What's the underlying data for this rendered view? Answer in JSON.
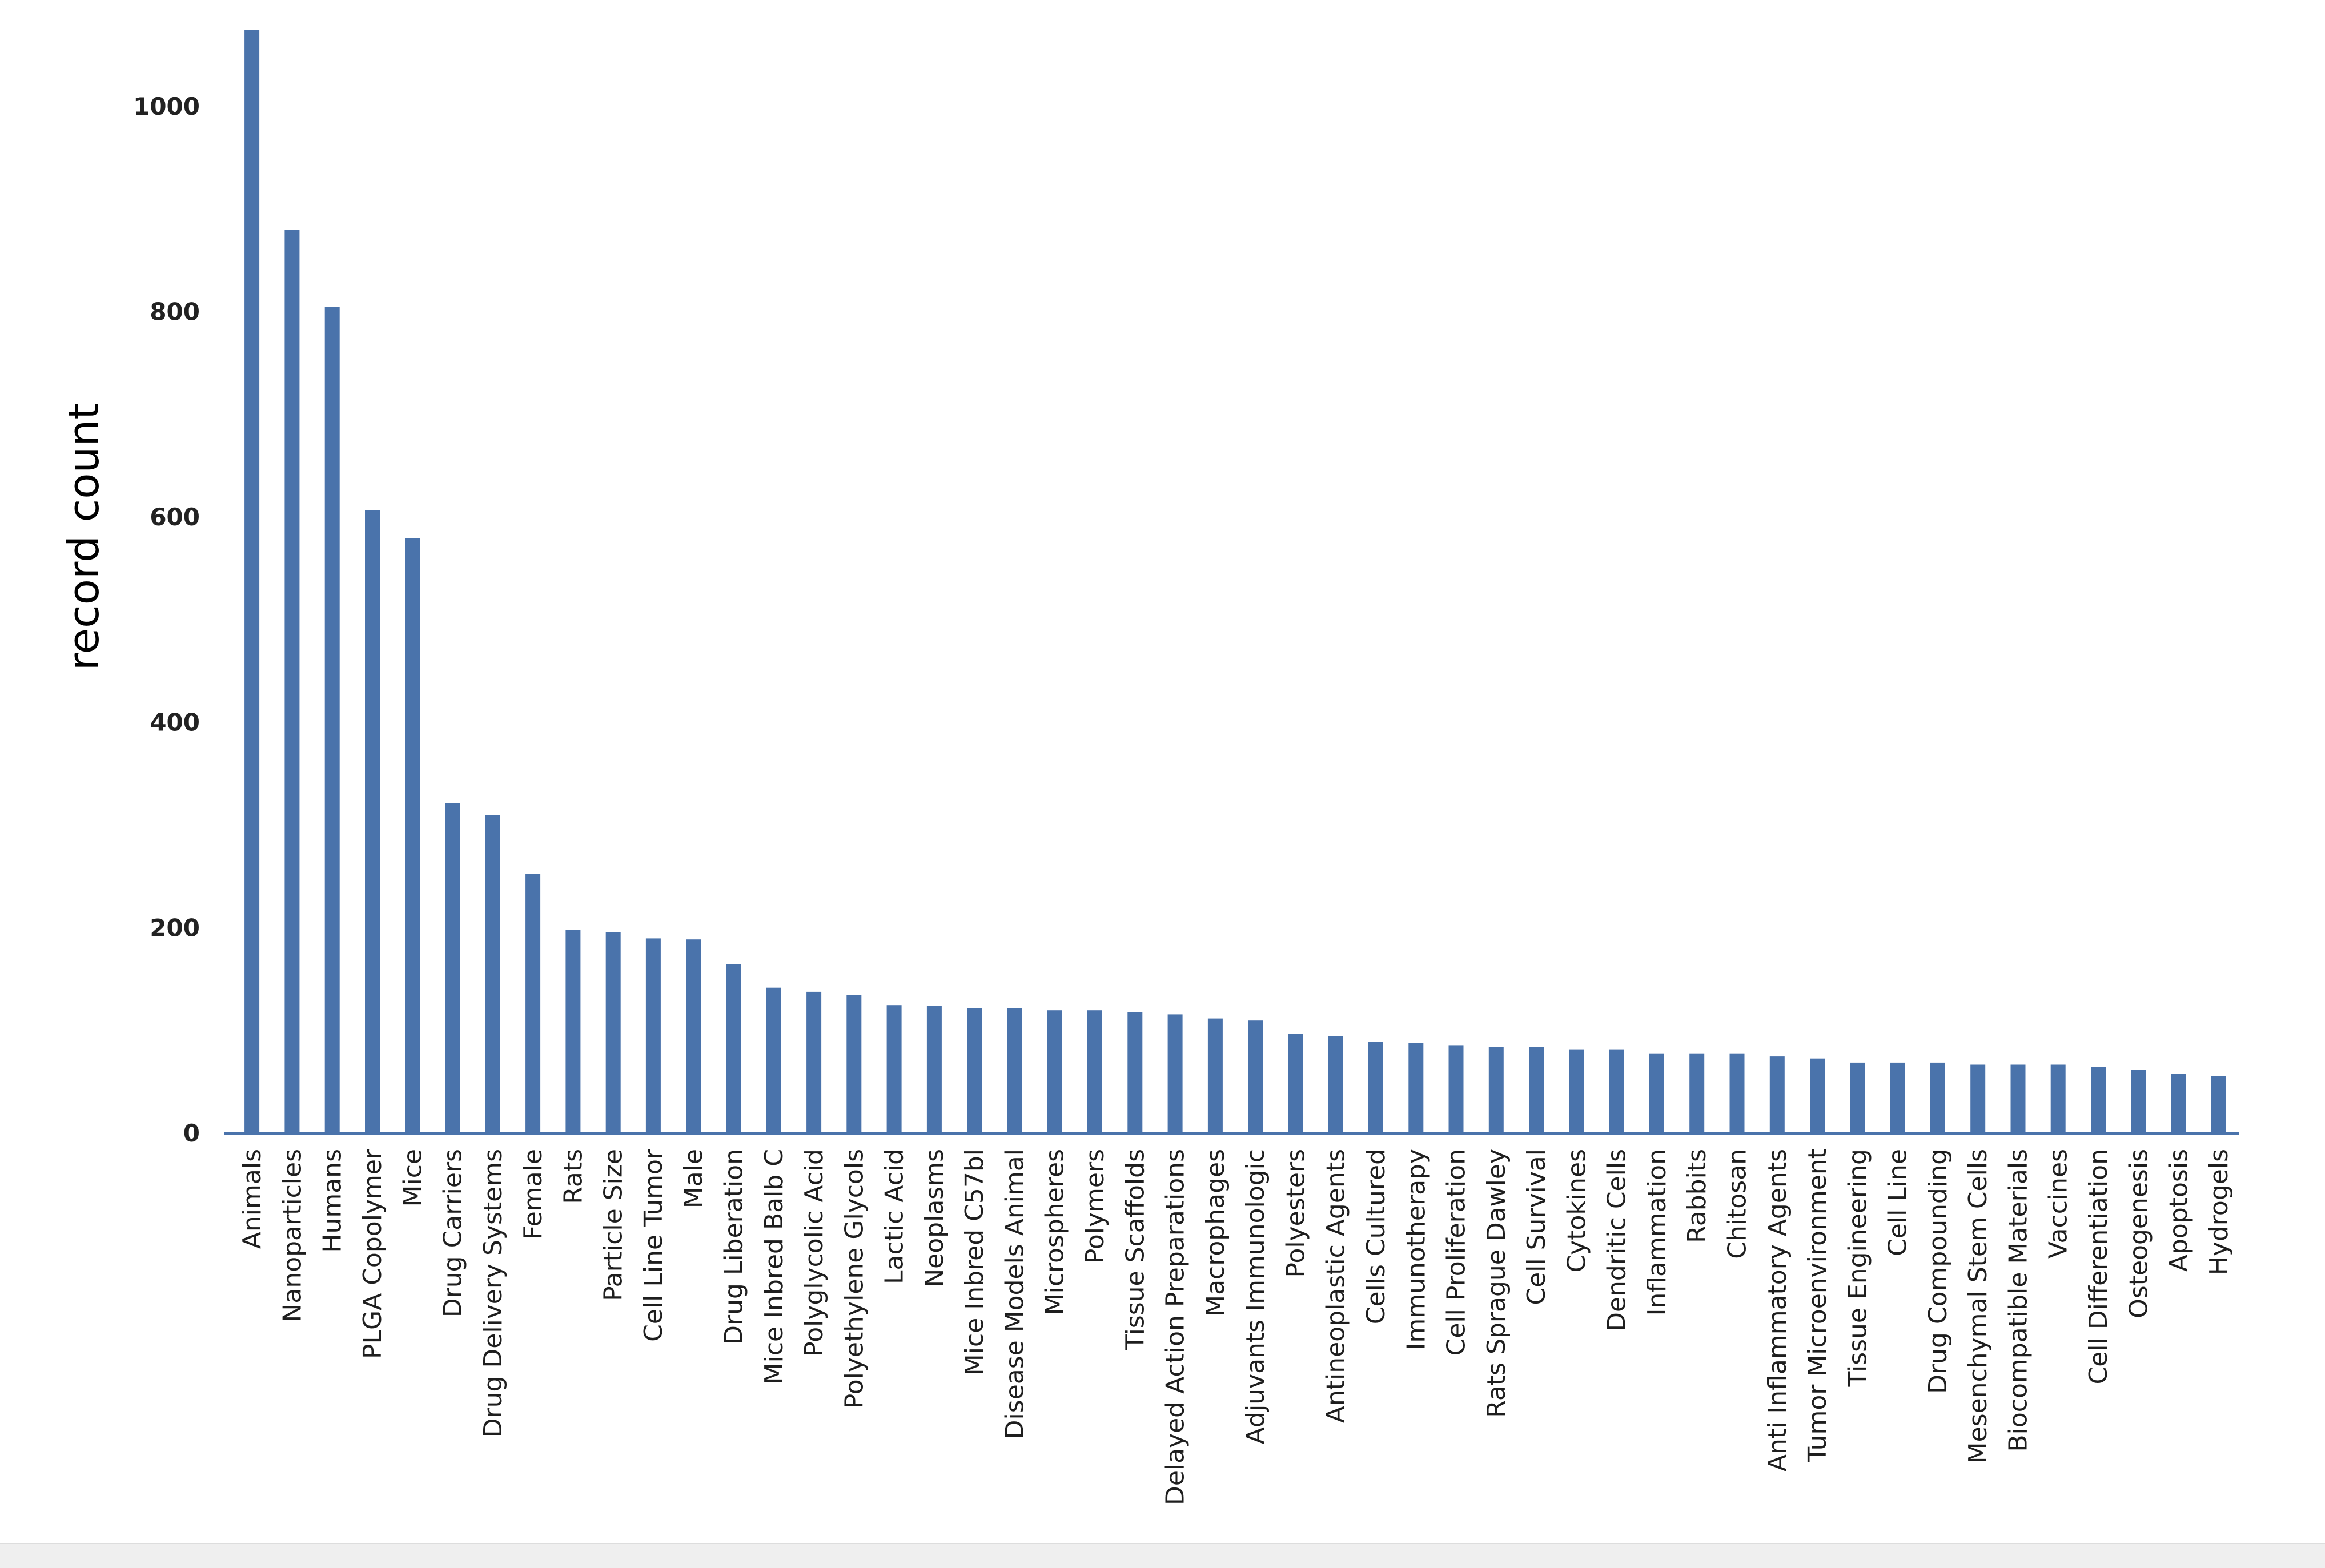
{
  "chart_data": {
    "type": "bar",
    "title": "",
    "xlabel": "",
    "ylabel": "record count",
    "ylim": [
      0,
      1075
    ],
    "yticks": [
      0,
      200,
      400,
      600,
      800,
      1000
    ],
    "grid": false,
    "legend": "none",
    "bar_color": "#4a73ab",
    "axis_color": "#4a73ab",
    "categories": [
      "Animals",
      "Nanoparticles",
      "Humans",
      "PLGA Copolymer",
      "Mice",
      "Drug Carriers",
      "Drug Delivery Systems",
      "Female",
      "Rats",
      "Particle Size",
      "Cell Line Tumor",
      "Male",
      "Drug Liberation",
      "Mice Inbred Balb C",
      "Polyglycolic Acid",
      "Polyethylene Glycols",
      "Lactic Acid",
      "Neoplasms",
      "Mice Inbred C57bl",
      "Disease Models Animal",
      "Microspheres",
      "Polymers",
      "Tissue Scaffolds",
      "Delayed Action Preparations",
      "Macrophages",
      "Adjuvants Immunologic",
      "Polyesters",
      "Antineoplastic Agents",
      "Cells Cultured",
      "Immunotherapy",
      "Cell Proliferation",
      "Rats Sprague Dawley",
      "Cell Survival",
      "Cytokines",
      "Dendritic Cells",
      "Inflammation",
      "Rabbits",
      "Chitosan",
      "Anti Inflammatory Agents",
      "Tumor Microenvironment",
      "Tissue Engineering",
      "Cell Line",
      "Drug Compounding",
      "Mesenchymal Stem Cells",
      "Biocompatible Materials",
      "Vaccines",
      "Cell Differentiation",
      "Osteogenesis",
      "Apoptosis",
      "Hydrogels"
    ],
    "values": [
      1075,
      880,
      805,
      607,
      580,
      322,
      310,
      253,
      198,
      196,
      190,
      189,
      165,
      142,
      138,
      135,
      125,
      124,
      122,
      122,
      120,
      120,
      118,
      116,
      112,
      110,
      97,
      95,
      89,
      88,
      86,
      84,
      84,
      82,
      82,
      78,
      78,
      78,
      75,
      73,
      69,
      69,
      69,
      67,
      67,
      67,
      65,
      62,
      58,
      56
    ]
  }
}
